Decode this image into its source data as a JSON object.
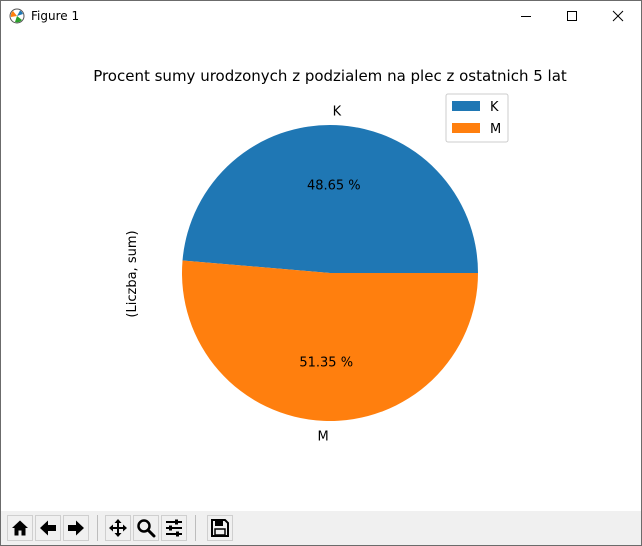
{
  "window": {
    "title": "Figure 1",
    "controls": {
      "minimize": "minimize",
      "maximize": "maximize",
      "close": "close"
    }
  },
  "toolbar": {
    "buttons": [
      {
        "name": "home",
        "icon": "home-icon"
      },
      {
        "name": "back",
        "icon": "arrow-left-icon"
      },
      {
        "name": "forward",
        "icon": "arrow-right-icon"
      },
      {
        "name": "pan",
        "icon": "move-icon"
      },
      {
        "name": "zoom",
        "icon": "magnifier-icon"
      },
      {
        "name": "configure-subplots",
        "icon": "sliders-icon"
      },
      {
        "name": "save",
        "icon": "floppy-disk-icon"
      }
    ]
  },
  "chart_data": {
    "type": "pie",
    "title": "Procent sumy urodzonych z podzialem na plec z ostatnich 5 lat",
    "ylabel": "(Liczba, sum)",
    "categories": [
      "K",
      "M"
    ],
    "values": [
      48.65,
      51.35
    ],
    "value_labels": [
      "48.65 %",
      "51.35 %"
    ],
    "colors": [
      "#1f77b4",
      "#ff7f0e"
    ],
    "start_angle_deg": 0,
    "direction": "counterclockwise",
    "legend": {
      "position": "top-right",
      "entries": [
        "K",
        "M"
      ]
    }
  }
}
